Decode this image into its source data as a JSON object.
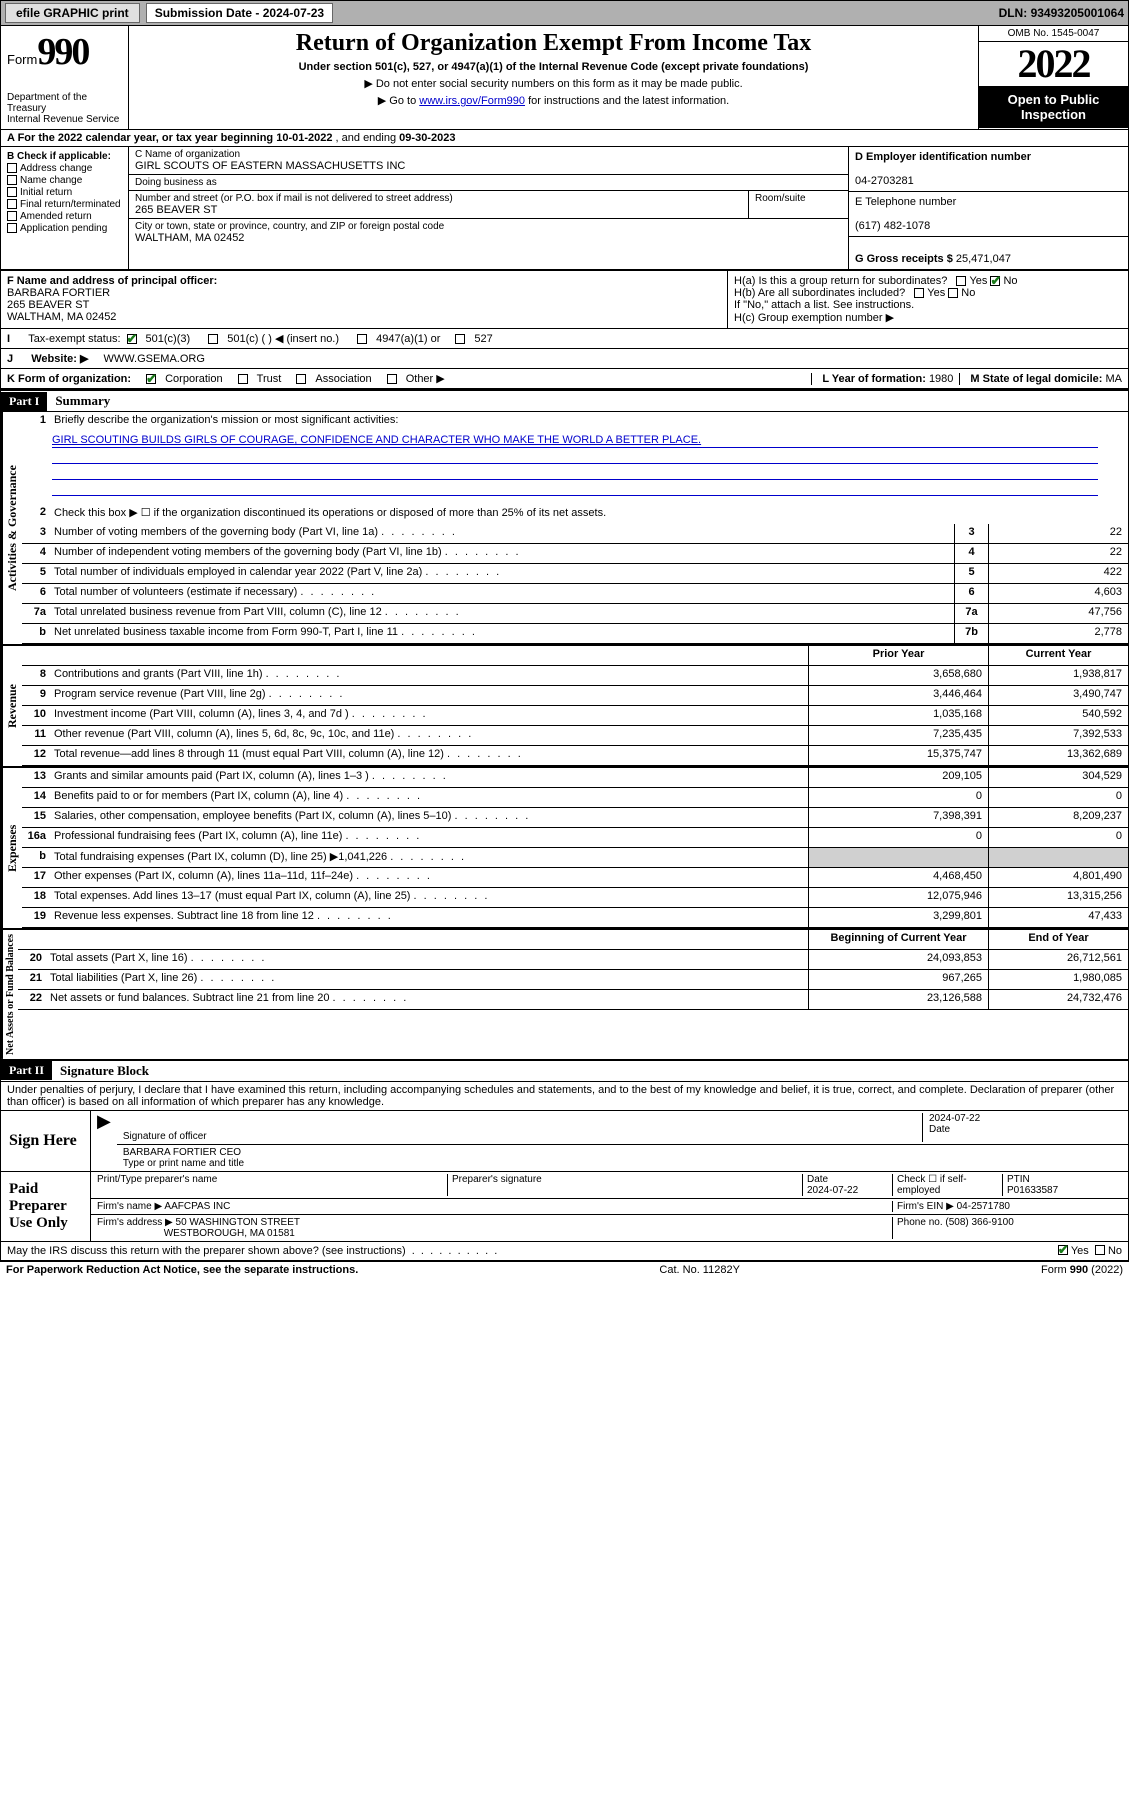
{
  "topbar": {
    "efile": "efile GRAPHIC print",
    "subdate_label": "Submission Date - ",
    "subdate": "2024-07-23",
    "dln_label": "DLN: ",
    "dln": "93493205001064"
  },
  "header": {
    "form_prefix": "Form",
    "form_num": "990",
    "dept": "Department of the Treasury\nInternal Revenue Service",
    "title": "Return of Organization Exempt From Income Tax",
    "subtitle": "Under section 501(c), 527, or 4947(a)(1) of the Internal Revenue Code (except private foundations)",
    "note1": "▶ Do not enter social security numbers on this form as it may be made public.",
    "note2_pre": "▶ Go to ",
    "note2_link": "www.irs.gov/Form990",
    "note2_post": " for instructions and the latest information.",
    "omb": "OMB No. 1545-0047",
    "year": "2022",
    "open_public": "Open to Public Inspection"
  },
  "row_a": {
    "label": "A For the 2022 calendar year, or tax year beginning ",
    "begin": "10-01-2022",
    "mid": "  , and ending ",
    "end": "09-30-2023"
  },
  "col_b": {
    "header": "B Check if applicable:",
    "items": [
      "Address change",
      "Name change",
      "Initial return",
      "Final return/terminated",
      "Amended return",
      "Application pending"
    ]
  },
  "col_c": {
    "name_lbl": "C Name of organization",
    "name": "GIRL SCOUTS OF EASTERN MASSACHUSETTS INC",
    "dba_lbl": "Doing business as",
    "dba": "",
    "addr_lbl": "Number and street (or P.O. box if mail is not delivered to street address)",
    "addr": "265 BEAVER ST",
    "room_lbl": "Room/suite",
    "city_lbl": "City or town, state or province, country, and ZIP or foreign postal code",
    "city": "WALTHAM, MA  02452"
  },
  "col_de": {
    "d_lbl": "D Employer identification number",
    "d_val": "04-2703281",
    "e_lbl": "E Telephone number",
    "e_val": "(617) 482-1078",
    "g_lbl": "G Gross receipts $ ",
    "g_val": "25,471,047"
  },
  "row_f": {
    "lbl": "F Name and address of principal officer:",
    "name": "BARBARA FORTIER",
    "addr1": "265 BEAVER ST",
    "addr2": "WALTHAM, MA  02452"
  },
  "row_h": {
    "ha": "H(a)  Is this a group return for subordinates?",
    "hb": "H(b)  Are all subordinates included?",
    "hb_note": "If \"No,\" attach a list. See instructions.",
    "hc": "H(c)  Group exemption number ▶",
    "yes": "Yes",
    "no": "No"
  },
  "row_i": {
    "lbl": "Tax-exempt status:",
    "opt1": "501(c)(3)",
    "opt2": "501(c) (   ) ◀ (insert no.)",
    "opt3": "4947(a)(1) or",
    "opt4": "527"
  },
  "row_j": {
    "lbl": "Website: ▶",
    "val": "WWW.GSEMA.ORG"
  },
  "row_k": {
    "lbl": "K Form of organization:",
    "opts": [
      "Corporation",
      "Trust",
      "Association",
      "Other ▶"
    ],
    "l_lbl": "L Year of formation: ",
    "l_val": "1980",
    "m_lbl": "M State of legal domicile: ",
    "m_val": "MA"
  },
  "part1": {
    "header": "Part I",
    "title": "Summary",
    "vert_ag": "Activities & Governance",
    "vert_rev": "Revenue",
    "vert_exp": "Expenses",
    "vert_na": "Net Assets or Fund Balances",
    "q1": "Briefly describe the organization's mission or most significant activities:",
    "mission": "GIRL SCOUTING BUILDS GIRLS OF COURAGE, CONFIDENCE AND CHARACTER WHO MAKE THE WORLD A BETTER PLACE.",
    "q2": "Check this box ▶ ☐  if the organization discontinued its operations or disposed of more than 25% of its net assets.",
    "lines_ag": [
      {
        "n": "3",
        "t": "Number of voting members of the governing body (Part VI, line 1a)",
        "box": "3",
        "v": "22"
      },
      {
        "n": "4",
        "t": "Number of independent voting members of the governing body (Part VI, line 1b)",
        "box": "4",
        "v": "22"
      },
      {
        "n": "5",
        "t": "Total number of individuals employed in calendar year 2022 (Part V, line 2a)",
        "box": "5",
        "v": "422"
      },
      {
        "n": "6",
        "t": "Total number of volunteers (estimate if necessary)",
        "box": "6",
        "v": "4,603"
      },
      {
        "n": "7a",
        "t": "Total unrelated business revenue from Part VIII, column (C), line 12",
        "box": "7a",
        "v": "47,756"
      },
      {
        "n": "b",
        "t": "Net unrelated business taxable income from Form 990-T, Part I, line 11",
        "box": "7b",
        "v": "2,778"
      }
    ],
    "col_prior": "Prior Year",
    "col_curr": "Current Year",
    "lines_rev": [
      {
        "n": "8",
        "t": "Contributions and grants (Part VIII, line 1h)",
        "p": "3,658,680",
        "c": "1,938,817"
      },
      {
        "n": "9",
        "t": "Program service revenue (Part VIII, line 2g)",
        "p": "3,446,464",
        "c": "3,490,747"
      },
      {
        "n": "10",
        "t": "Investment income (Part VIII, column (A), lines 3, 4, and 7d )",
        "p": "1,035,168",
        "c": "540,592"
      },
      {
        "n": "11",
        "t": "Other revenue (Part VIII, column (A), lines 5, 6d, 8c, 9c, 10c, and 11e)",
        "p": "7,235,435",
        "c": "7,392,533"
      },
      {
        "n": "12",
        "t": "Total revenue—add lines 8 through 11 (must equal Part VIII, column (A), line 12)",
        "p": "15,375,747",
        "c": "13,362,689"
      }
    ],
    "lines_exp": [
      {
        "n": "13",
        "t": "Grants and similar amounts paid (Part IX, column (A), lines 1–3 )",
        "p": "209,105",
        "c": "304,529"
      },
      {
        "n": "14",
        "t": "Benefits paid to or for members (Part IX, column (A), line 4)",
        "p": "0",
        "c": "0"
      },
      {
        "n": "15",
        "t": "Salaries, other compensation, employee benefits (Part IX, column (A), lines 5–10)",
        "p": "7,398,391",
        "c": "8,209,237"
      },
      {
        "n": "16a",
        "t": "Professional fundraising fees (Part IX, column (A), line 11e)",
        "p": "0",
        "c": "0"
      },
      {
        "n": "b",
        "t": "Total fundraising expenses (Part IX, column (D), line 25) ▶1,041,226",
        "p": "",
        "c": "",
        "shade": true
      },
      {
        "n": "17",
        "t": "Other expenses (Part IX, column (A), lines 11a–11d, 11f–24e)",
        "p": "4,468,450",
        "c": "4,801,490"
      },
      {
        "n": "18",
        "t": "Total expenses. Add lines 13–17 (must equal Part IX, column (A), line 25)",
        "p": "12,075,946",
        "c": "13,315,256"
      },
      {
        "n": "19",
        "t": "Revenue less expenses. Subtract line 18 from line 12",
        "p": "3,299,801",
        "c": "47,433"
      }
    ],
    "col_begin": "Beginning of Current Year",
    "col_end": "End of Year",
    "lines_na": [
      {
        "n": "20",
        "t": "Total assets (Part X, line 16)",
        "p": "24,093,853",
        "c": "26,712,561"
      },
      {
        "n": "21",
        "t": "Total liabilities (Part X, line 26)",
        "p": "967,265",
        "c": "1,980,085"
      },
      {
        "n": "22",
        "t": "Net assets or fund balances. Subtract line 21 from line 20",
        "p": "23,126,588",
        "c": "24,732,476"
      }
    ]
  },
  "part2": {
    "header": "Part II",
    "title": "Signature Block",
    "decl": "Under penalties of perjury, I declare that I have examined this return, including accompanying schedules and statements, and to the best of my knowledge and belief, it is true, correct, and complete. Declaration of preparer (other than officer) is based on all information of which preparer has any knowledge.",
    "sign_here": "Sign Here",
    "sig_officer_lbl": "Signature of officer",
    "sig_date": "2024-07-22",
    "sig_date_lbl": "Date",
    "sig_name": "BARBARA FORTIER CEO",
    "sig_name_lbl": "Type or print name and title",
    "paid_prep": "Paid Preparer Use Only",
    "pp_name_lbl": "Print/Type preparer's name",
    "pp_sig_lbl": "Preparer's signature",
    "pp_date_lbl": "Date",
    "pp_date": "2024-07-22",
    "pp_check_lbl": "Check ☐ if self-employed",
    "pp_ptin_lbl": "PTIN",
    "pp_ptin": "P01633587",
    "firm_name_lbl": "Firm's name   ▶",
    "firm_name": "AAFCPAS INC",
    "firm_ein_lbl": "Firm's EIN ▶",
    "firm_ein": "04-2571780",
    "firm_addr_lbl": "Firm's address ▶",
    "firm_addr1": "50 WASHINGTON STREET",
    "firm_addr2": "WESTBOROUGH, MA  01581",
    "firm_phone_lbl": "Phone no. ",
    "firm_phone": "(508) 366-9100",
    "may_irs": "May the IRS discuss this return with the preparer shown above? (see instructions)",
    "yes": "Yes",
    "no": "No"
  },
  "footer": {
    "left": "For Paperwork Reduction Act Notice, see the separate instructions.",
    "mid": "Cat. No. 11282Y",
    "right": "Form 990 (2022)"
  }
}
